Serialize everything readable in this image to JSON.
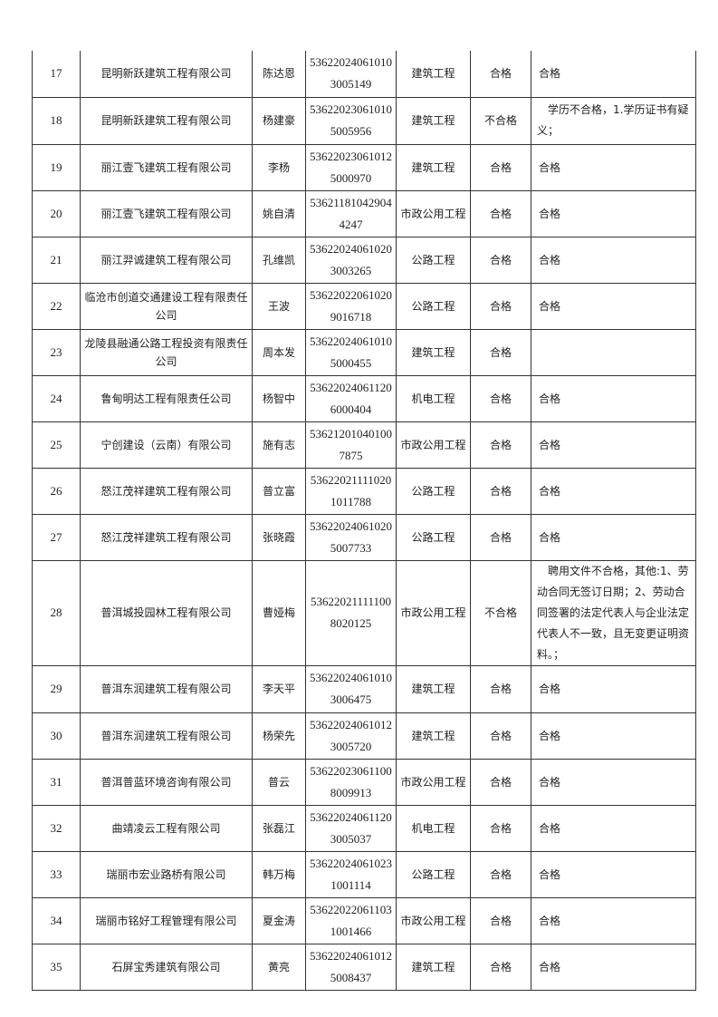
{
  "rows": [
    {
      "no": "17",
      "company": "昆明新跃建筑工程有限公司",
      "name": "陈达恩",
      "cert": "536220240610103005149",
      "category": "建筑工程",
      "result": "合格",
      "remark": "合格"
    },
    {
      "no": "18",
      "company": "昆明新跃建筑工程有限公司",
      "name": "杨建豪",
      "cert": "536220230610105005956",
      "category": "建筑工程",
      "result": "不合格",
      "remark": "学历不合格，1.学历证书有疑义；"
    },
    {
      "no": "19",
      "company": "丽江壹飞建筑工程有限公司",
      "name": "李杨",
      "cert": "536220230610125000970",
      "category": "建筑工程",
      "result": "合格",
      "remark": "合格"
    },
    {
      "no": "20",
      "company": "丽江壹飞建筑工程有限公司",
      "name": "姚自清",
      "cert": "536211810429044247",
      "category": "市政公用工程",
      "result": "合格",
      "remark": "合格"
    },
    {
      "no": "21",
      "company": "丽江羿诚建筑工程有限公司",
      "name": "孔维凯",
      "cert": "536220240610203003265",
      "category": "公路工程",
      "result": "合格",
      "remark": "合格"
    },
    {
      "no": "22",
      "company": "临沧市创道交通建设工程有限责任公司",
      "name": "王波",
      "cert": "536220220610209016718",
      "category": "公路工程",
      "result": "合格",
      "remark": "合格"
    },
    {
      "no": "23",
      "company": "龙陵县融通公路工程投资有限责任公司",
      "name": "周本发",
      "cert": "536220240610105000455",
      "category": "建筑工程",
      "result": "合格",
      "remark": ""
    },
    {
      "no": "24",
      "company": "鲁甸明达工程有限责任公司",
      "name": "杨智中",
      "cert": "536220240611206000404",
      "category": "机电工程",
      "result": "合格",
      "remark": "合格"
    },
    {
      "no": "25",
      "company": "宁创建设（云南）有限公司",
      "name": "施有志",
      "cert": "536212010401007875",
      "category": "市政公用工程",
      "result": "合格",
      "remark": "合格"
    },
    {
      "no": "26",
      "company": "怒江茂祥建筑工程有限公司",
      "name": "普立富",
      "cert": "536220211110201011788",
      "category": "公路工程",
      "result": "合格",
      "remark": "合格"
    },
    {
      "no": "27",
      "company": "怒江茂祥建筑工程有限公司",
      "name": "张晓霞",
      "cert": "536220240610205007733",
      "category": "公路工程",
      "result": "合格",
      "remark": "合格"
    },
    {
      "no": "28",
      "company": "普洱城投园林工程有限公司",
      "name": "曹娅梅",
      "cert": "536220211111008020125",
      "category": "市政公用工程",
      "result": "不合格",
      "remark": "聘用文件不合格，其他:1、劳动合同无签订日期；2、劳动合同签署的法定代表人与企业法定代表人不一致，且无变更证明资料。；"
    },
    {
      "no": "29",
      "company": "普洱东润建筑工程有限公司",
      "name": "李天平",
      "cert": "536220240610103006475",
      "category": "建筑工程",
      "result": "合格",
      "remark": "合格"
    },
    {
      "no": "30",
      "company": "普洱东润建筑工程有限公司",
      "name": "杨荣先",
      "cert": "536220240610123005720",
      "category": "建筑工程",
      "result": "合格",
      "remark": "合格"
    },
    {
      "no": "31",
      "company": "普洱普蓝环境咨询有限公司",
      "name": "普云",
      "cert": "536220230611008009913",
      "category": "市政公用工程",
      "result": "合格",
      "remark": "合格"
    },
    {
      "no": "32",
      "company": "曲靖凌云工程有限公司",
      "name": "张磊江",
      "cert": "536220240611203005037",
      "category": "机电工程",
      "result": "合格",
      "remark": "合格"
    },
    {
      "no": "33",
      "company": "瑞丽市宏业路桥有限公司",
      "name": "韩万梅",
      "cert": "536220240610231001114",
      "category": "公路工程",
      "result": "合格",
      "remark": "合格"
    },
    {
      "no": "34",
      "company": "瑞丽市铭好工程管理有限公司",
      "name": "夏金涛",
      "cert": "536220220611031001466",
      "category": "市政公用工程",
      "result": "合格",
      "remark": "合格"
    },
    {
      "no": "35",
      "company": "石屏宝秀建筑有限公司",
      "name": "黄亮",
      "cert": "536220240610125008437",
      "category": "建筑工程",
      "result": "合格",
      "remark": "合格"
    }
  ]
}
